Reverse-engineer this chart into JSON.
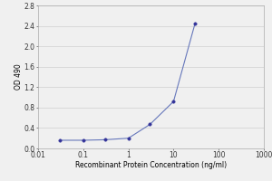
{
  "x_values": [
    0.031,
    0.1,
    0.3,
    1,
    3,
    10,
    30
  ],
  "y_values": [
    0.16,
    0.16,
    0.17,
    0.2,
    0.47,
    0.92,
    2.45
  ],
  "line_color": "#6677bb",
  "marker_color": "#333399",
  "marker_size": 2.5,
  "line_width": 0.8,
  "xlabel": "Recombinant Protein Concentration (ng/ml)",
  "ylabel": "OD 490",
  "xlim": [
    0.01,
    1000
  ],
  "ylim": [
    0,
    2.8
  ],
  "yticks": [
    0.0,
    0.4,
    0.8,
    1.2,
    1.6,
    2.0,
    2.4,
    2.8
  ],
  "xticks": [
    0.01,
    0.1,
    1,
    10,
    100,
    1000
  ],
  "xtick_labels": [
    "0.01",
    "0.1",
    "1",
    "10",
    "100",
    "1000"
  ],
  "grid_color": "#d0d0d0",
  "background_color": "#f0f0f0",
  "plot_bg_color": "#f0f0f0",
  "axis_fontsize": 5.5,
  "tick_fontsize": 5.5,
  "ylabel_fontsize": 5.5
}
